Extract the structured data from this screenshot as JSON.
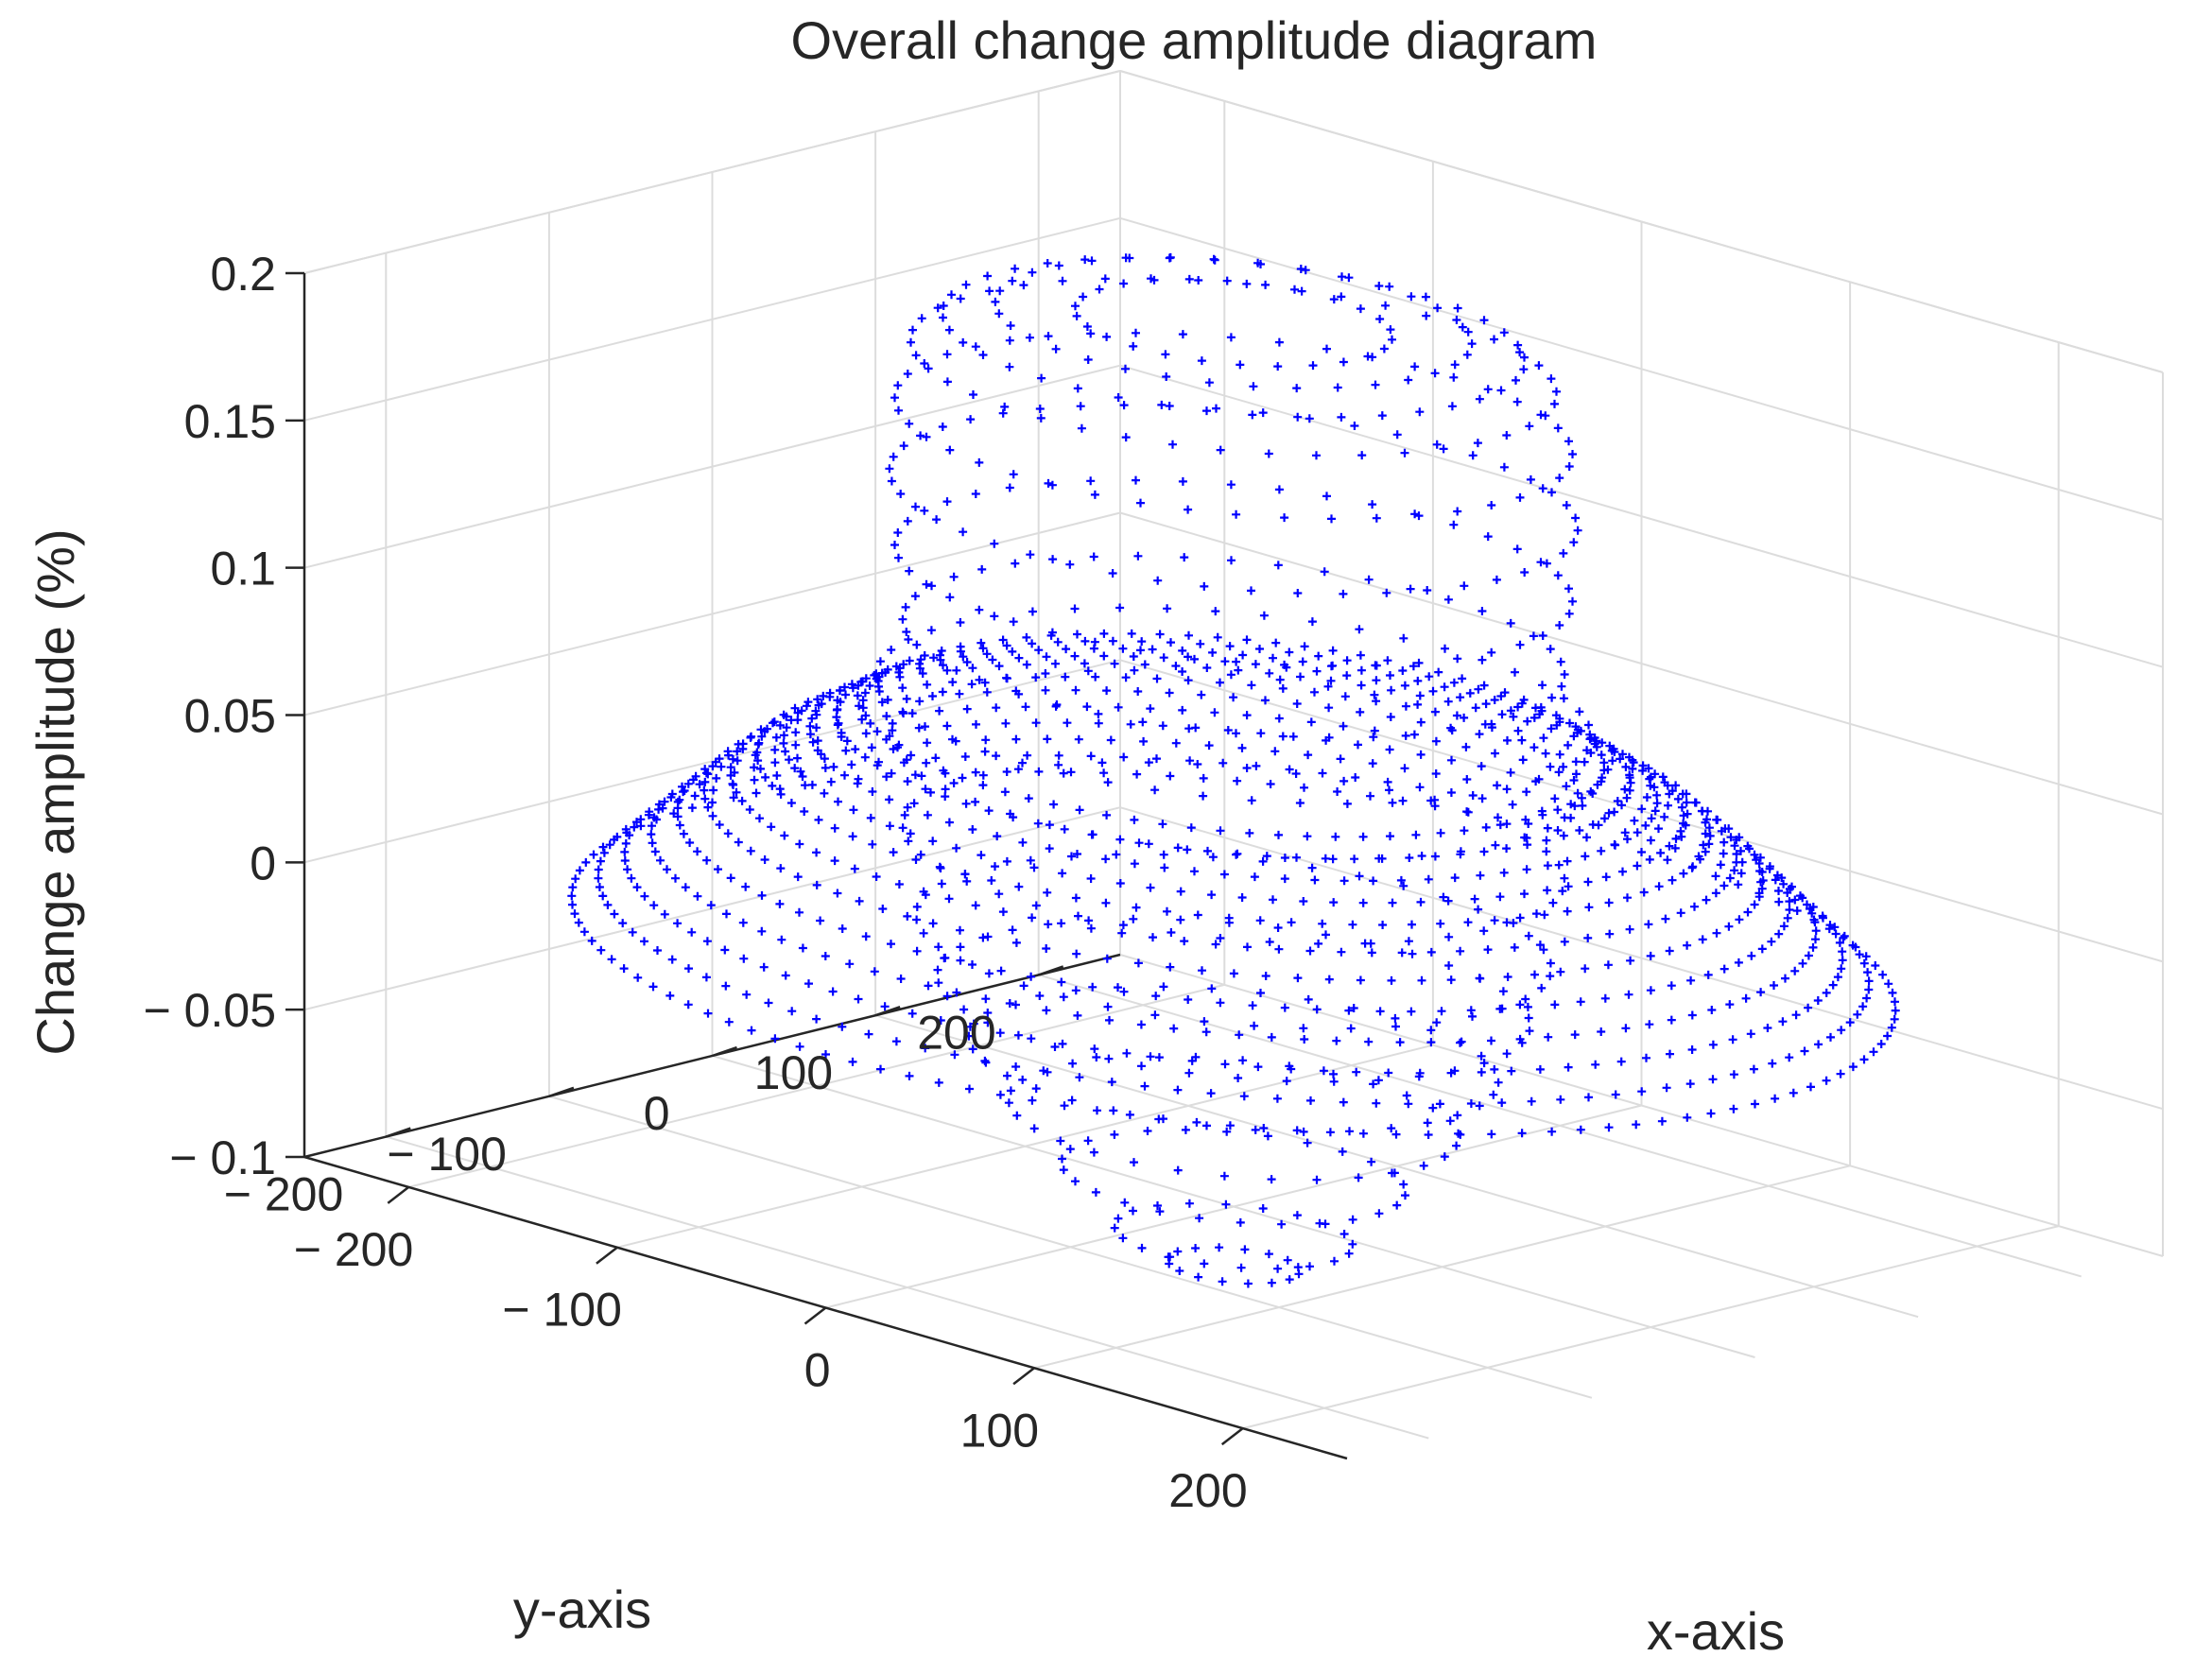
{
  "chart_data": {
    "type": "scatter",
    "title": "Overall change amplitude diagram",
    "xlabel": "x-axis",
    "ylabel": "y-axis",
    "zlabel": "Change amplitude (%)",
    "xlim": [
      -250,
      250
    ],
    "ylim": [
      -250,
      250
    ],
    "zlim": [
      -0.1,
      0.2
    ],
    "x_ticks": [
      -200,
      -100,
      0,
      100,
      200
    ],
    "y_ticks": [
      -200,
      -100,
      0,
      100,
      200
    ],
    "z_ticks": [
      -0.1,
      -0.05,
      0,
      0.05,
      0.1,
      0.15,
      0.2
    ],
    "x_tick_labels": [
      "− 200",
      "− 100",
      "0",
      "100",
      "200"
    ],
    "y_tick_labels": [
      "− 200",
      "− 100",
      "0",
      "100",
      "200"
    ],
    "z_tick_labels": [
      "− 0.1",
      "− 0.05",
      "0",
      "0.05",
      "0.1",
      "0.15",
      "0.2"
    ],
    "grid": true,
    "marker": "+",
    "color": "#0000FF",
    "series": [
      {
        "rings": [
          {
            "radius": 25,
            "z": -0.12,
            "points": 16
          },
          {
            "radius": 45,
            "z": -0.11,
            "points": 20
          },
          {
            "radius": 65,
            "z": -0.09,
            "points": 26
          },
          {
            "radius": 85,
            "z": -0.07,
            "points": 30
          },
          {
            "radius": 100,
            "z": -0.05,
            "points": 34
          },
          {
            "radius": 112,
            "z": -0.03,
            "points": 38
          },
          {
            "radius": 120,
            "z": -0.01,
            "points": 40
          },
          {
            "radius": 125,
            "z": 0.02,
            "points": 42
          },
          {
            "radius": 130,
            "z": 0.05,
            "points": 44
          },
          {
            "radius": 135,
            "z": 0.07,
            "points": 46
          },
          {
            "radius": 125,
            "z": 0.09,
            "points": 44
          },
          {
            "radius": 128,
            "z": 0.115,
            "points": 44
          },
          {
            "radius": 130,
            "z": 0.14,
            "points": 46
          },
          {
            "radius": 128,
            "z": 0.165,
            "points": 44
          },
          {
            "radius": 122,
            "z": 0.185,
            "points": 42
          },
          {
            "radius": 110,
            "z": 0.195,
            "points": 40
          },
          {
            "radius": 90,
            "z": 0.2,
            "points": 34
          },
          {
            "radius": 60,
            "z": 0.2,
            "points": 26
          }
        ],
        "annulus": [
          {
            "radius": 140,
            "z": 0.06,
            "points": 80
          },
          {
            "radius": 150,
            "z": 0.055,
            "points": 84
          },
          {
            "radius": 160,
            "z": 0.05,
            "points": 88
          },
          {
            "radius": 170,
            "z": 0.045,
            "points": 92
          },
          {
            "radius": 180,
            "z": 0.04,
            "points": 96
          },
          {
            "radius": 190,
            "z": 0.033,
            "points": 100
          },
          {
            "radius": 200,
            "z": 0.026,
            "points": 104
          },
          {
            "radius": 210,
            "z": 0.018,
            "points": 108
          },
          {
            "radius": 220,
            "z": 0.01,
            "points": 112
          },
          {
            "radius": 230,
            "z": 0.002,
            "points": 116
          },
          {
            "radius": 240,
            "z": -0.006,
            "points": 120
          },
          {
            "radius": 250,
            "z": -0.014,
            "points": 124
          }
        ]
      }
    ]
  }
}
